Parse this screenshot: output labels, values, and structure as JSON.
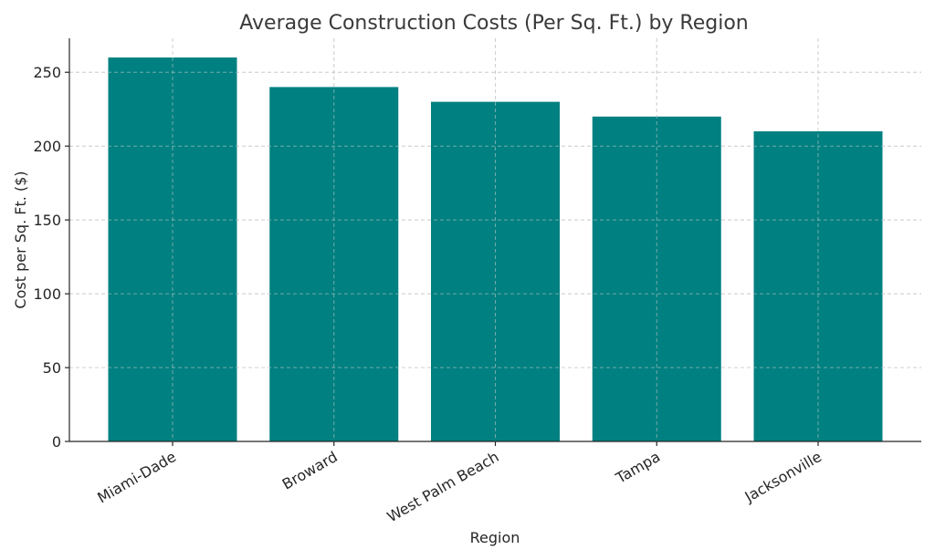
{
  "chart_data": {
    "type": "bar",
    "title": "Average Construction Costs (Per Sq. Ft.) by Region",
    "xlabel": "Region",
    "ylabel": "Cost per Sq. Ft. ($)",
    "categories": [
      "Miami-Dade",
      "Broward",
      "West Palm Beach",
      "Tampa",
      "Jacksonville"
    ],
    "values": [
      260,
      240,
      230,
      220,
      210
    ],
    "ylim": [
      0,
      273
    ],
    "yticks": [
      0,
      50,
      100,
      150,
      200,
      250
    ],
    "grid": true,
    "bar_color": "#008080"
  }
}
